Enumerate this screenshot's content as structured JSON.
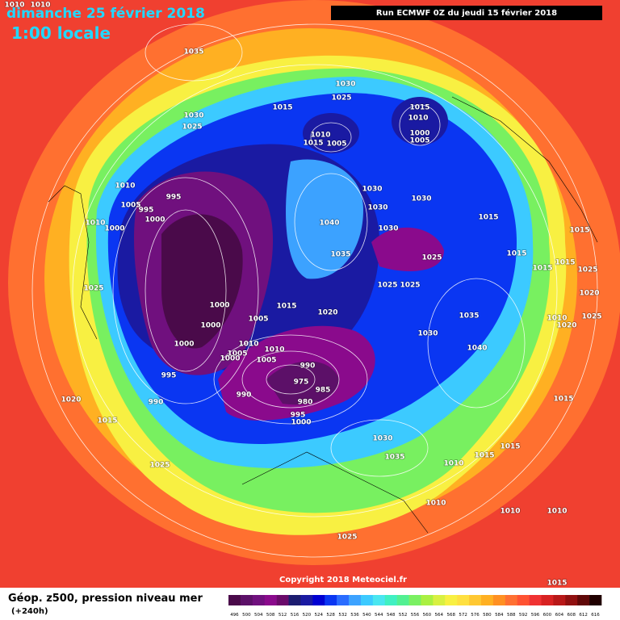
{
  "header": {
    "valid_date": "dimanche 25 février 2018",
    "local_time": "1:00 locale",
    "run": "Run ECMWF 0Z du jeudi 15 février 2018"
  },
  "footer": {
    "field": "Géop. z500, pression niveau mer",
    "lead": "(+240h)",
    "copyright": "Copyright 2018 Meteociel.fr"
  },
  "isobar_labels": [
    1010,
    1010,
    1035,
    1030,
    1025,
    1030,
    1025,
    1015,
    1010,
    1015,
    1005,
    1015,
    1010,
    1000,
    1005,
    1010,
    995,
    1005,
    995,
    1000,
    1010,
    1000,
    1030,
    1030,
    1030,
    1040,
    1030,
    1015,
    1015,
    1035,
    1015,
    1025,
    1015,
    1015,
    1025,
    1025,
    1025,
    1025,
    1020,
    1000,
    1015,
    1020,
    1035,
    1010,
    1025,
    1020,
    1000,
    1005,
    1030,
    1010,
    1000,
    1040,
    1010,
    1005,
    1000,
    1005,
    990,
    995,
    975,
    985,
    990,
    980,
    990,
    1020,
    995,
    1000,
    1015,
    1015,
    1030,
    1035,
    1010,
    1015,
    1015,
    1025,
    1010,
    1010,
    1010,
    1025,
    1015
  ],
  "legend": {
    "levels": [
      496,
      500,
      504,
      508,
      512,
      516,
      520,
      524,
      528,
      532,
      536,
      540,
      544,
      548,
      552,
      556,
      560,
      564,
      568,
      572,
      576,
      580,
      584,
      588,
      592,
      596,
      600,
      604,
      608,
      612,
      616
    ],
    "colors": [
      "#4a0a4a",
      "#5c1068",
      "#70107e",
      "#8a0a8c",
      "#6a0a6a",
      "#1c1c70",
      "#1a1aa2",
      "#0000d2",
      "#0a36f2",
      "#2a6cff",
      "#3ca2ff",
      "#3ccaff",
      "#4ae6f0",
      "#40f0c2",
      "#52f092",
      "#7af062",
      "#aaf042",
      "#d8f042",
      "#f8f042",
      "#ffe040",
      "#ffc832",
      "#ffb022",
      "#ff9022",
      "#ff7032",
      "#ff5232",
      "#f03232",
      "#d82222",
      "#b81818",
      "#901010",
      "#600808",
      "#200000"
    ]
  }
}
